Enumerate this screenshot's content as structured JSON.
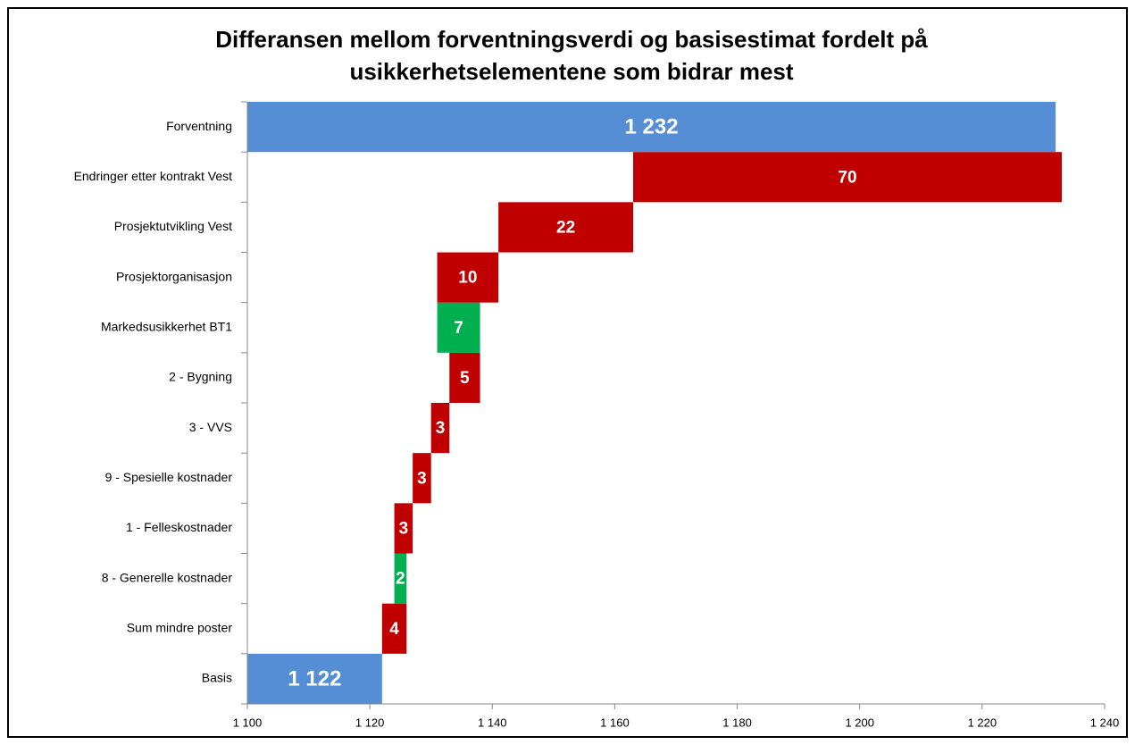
{
  "chart_data": {
    "type": "waterfall",
    "title": "Differansen mellom forventningsverdi og basisestimat fordelt på usikkerhetselementene som bidrar mest",
    "categories": [
      "Forventning",
      "Endringer etter kontrakt Vest",
      "Prosjektutvikling Vest",
      "Prosjektorganisasjon",
      "Markedsusikkerhet BT1",
      "2 - Bygning",
      "3 - VVS",
      "9 - Spesielle kostnader",
      "1 - Felleskostnader",
      "8 - Generelle kostnader",
      "Sum mindre poster",
      "Basis"
    ],
    "values": [
      1232,
      70,
      22,
      10,
      -7,
      5,
      3,
      3,
      3,
      -2,
      4,
      1122
    ],
    "value_labels": [
      "1 232",
      "70",
      "22",
      "10",
      "7",
      "5",
      "3",
      "3",
      "3",
      "2",
      "4",
      "1 122"
    ],
    "color_total": "#558ed5",
    "color_increase": "#c00000",
    "color_decrease": "#00b050",
    "xlim": [
      1100,
      1240
    ],
    "xticks": [
      {
        "value": 1100,
        "label": "1 100"
      },
      {
        "value": 1120,
        "label": "1 120"
      },
      {
        "value": 1140,
        "label": "1 140"
      },
      {
        "value": 1160,
        "label": "1 160"
      },
      {
        "value": 1180,
        "label": "1 180"
      },
      {
        "value": 1200,
        "label": "1 200"
      },
      {
        "value": 1220,
        "label": "1 220"
      },
      {
        "value": 1240,
        "label": "1 240"
      }
    ]
  }
}
